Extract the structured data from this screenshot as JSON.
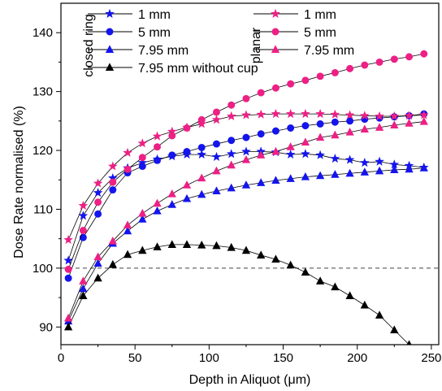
{
  "chart_data": {
    "type": "line",
    "title": "",
    "xlabel": "Depth in Aliquot (μm)",
    "ylabel": "Dose Rate normalised (%)",
    "xlim": [
      0,
      255
    ],
    "ylim": [
      87,
      145
    ],
    "xticks": [
      0,
      50,
      100,
      150,
      200,
      250
    ],
    "yticks": [
      90,
      100,
      110,
      120,
      130,
      140
    ],
    "reference_line": {
      "y": 100,
      "style": "dashed"
    },
    "legend": {
      "placement": "top",
      "groups": [
        {
          "label": "closed ring",
          "placement": "top-left"
        },
        {
          "label": "planar",
          "placement": "top-center"
        }
      ]
    },
    "colors": {
      "blue": "#1414ee",
      "pink": "#ee1f85",
      "black": "#000000"
    },
    "series": [
      {
        "name": "1 mm",
        "group": "closed ring",
        "marker": "star",
        "color": "#1414ee",
        "x": [
          5,
          15,
          25,
          35,
          45,
          55,
          65,
          75,
          85,
          95,
          105,
          115,
          125,
          135,
          145,
          155,
          165,
          175,
          185,
          195,
          205,
          215,
          225,
          235,
          245
        ],
        "values": [
          101.3,
          108.9,
          112.8,
          115.3,
          117.0,
          117.9,
          118.5,
          119.0,
          119.3,
          119.3,
          118.9,
          119.4,
          119.8,
          119.8,
          119.7,
          119.3,
          119.4,
          119.2,
          118.6,
          118.4,
          117.9,
          118.1,
          117.6,
          117.4,
          117.1
        ]
      },
      {
        "name": "5 mm",
        "group": "closed ring",
        "marker": "circle",
        "color": "#1414ee",
        "x": [
          5,
          15,
          25,
          35,
          45,
          55,
          65,
          75,
          85,
          95,
          105,
          115,
          125,
          135,
          145,
          155,
          165,
          175,
          185,
          195,
          205,
          215,
          225,
          235,
          245
        ],
        "values": [
          98.3,
          105.2,
          109.2,
          113.3,
          116.2,
          117.3,
          118.3,
          119.2,
          119.8,
          120.5,
          121.1,
          121.7,
          122.2,
          122.8,
          123.3,
          123.8,
          124.2,
          124.5,
          124.8,
          125.0,
          125.3,
          125.5,
          125.7,
          125.9,
          126.2
        ]
      },
      {
        "name": "7.95 mm",
        "group": "closed ring",
        "marker": "triangle",
        "color": "#1414ee",
        "x": [
          5,
          15,
          25,
          35,
          45,
          55,
          65,
          75,
          85,
          95,
          105,
          115,
          125,
          135,
          145,
          155,
          165,
          175,
          185,
          195,
          205,
          215,
          225,
          235,
          245
        ],
        "values": [
          91.0,
          96.5,
          100.8,
          104.2,
          106.3,
          108.3,
          109.7,
          110.8,
          111.8,
          112.5,
          113.1,
          113.6,
          114.1,
          114.5,
          114.9,
          115.2,
          115.5,
          115.7,
          115.9,
          116.1,
          116.3,
          116.5,
          116.7,
          116.8,
          117.0
        ]
      },
      {
        "name": "7.95 mm without cup",
        "group": "closed ring",
        "marker": "triangle",
        "color": "#000000",
        "x": [
          5,
          15,
          25,
          35,
          45,
          55,
          65,
          75,
          85,
          95,
          105,
          115,
          125,
          135,
          145,
          155,
          165,
          175,
          185,
          195,
          205,
          215,
          225,
          235,
          245
        ],
        "values": [
          90.0,
          95.3,
          98.3,
          100.6,
          102.3,
          103.0,
          103.6,
          104.0,
          104.0,
          103.9,
          103.8,
          103.5,
          103.0,
          102.2,
          101.5,
          100.5,
          99.3,
          97.8,
          96.8,
          95.3,
          93.7,
          92.0,
          89.5,
          87.0,
          84.5
        ]
      },
      {
        "name": "1 mm",
        "group": "planar",
        "marker": "star",
        "color": "#ee1f85",
        "x": [
          5,
          15,
          25,
          35,
          45,
          55,
          65,
          75,
          85,
          95,
          105,
          115,
          125,
          135,
          145,
          155,
          165,
          175,
          185,
          195,
          205,
          215,
          225,
          235,
          245
        ],
        "values": [
          104.8,
          110.6,
          114.4,
          117.3,
          119.6,
          121.2,
          122.4,
          123.2,
          123.9,
          124.5,
          125.2,
          125.8,
          126.0,
          126.1,
          126.2,
          126.2,
          126.2,
          126.2,
          126.1,
          126.0,
          125.9,
          125.8,
          125.8,
          125.9,
          126.0
        ]
      },
      {
        "name": "5 mm",
        "group": "planar",
        "marker": "circle",
        "color": "#ee1f85",
        "x": [
          5,
          15,
          25,
          35,
          45,
          55,
          65,
          75,
          85,
          95,
          105,
          115,
          125,
          135,
          145,
          155,
          165,
          175,
          185,
          195,
          205,
          215,
          225,
          235,
          245
        ],
        "values": [
          99.8,
          106.4,
          111.2,
          114.6,
          116.8,
          118.8,
          120.6,
          122.5,
          123.8,
          125.2,
          126.5,
          127.7,
          128.8,
          129.8,
          130.6,
          131.3,
          131.9,
          132.6,
          133.2,
          133.9,
          134.5,
          135.0,
          135.5,
          135.9,
          136.4
        ]
      },
      {
        "name": "7.95 mm",
        "group": "planar",
        "marker": "triangle",
        "color": "#ee1f85",
        "x": [
          5,
          15,
          25,
          35,
          45,
          55,
          65,
          75,
          85,
          95,
          105,
          115,
          125,
          135,
          145,
          155,
          165,
          175,
          185,
          195,
          205,
          215,
          225,
          235,
          245
        ],
        "values": [
          91.5,
          97.8,
          101.9,
          104.6,
          107.3,
          109.3,
          111.0,
          112.6,
          114.1,
          115.3,
          116.5,
          117.5,
          118.4,
          119.2,
          119.8,
          120.6,
          121.4,
          122.2,
          122.6,
          123.1,
          123.6,
          123.9,
          124.3,
          124.6,
          124.9
        ]
      }
    ]
  }
}
